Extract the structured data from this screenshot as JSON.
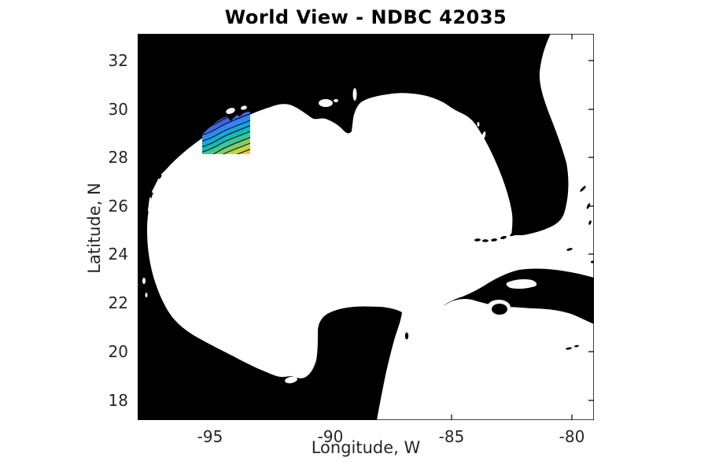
{
  "figure": {
    "title": "World View - NDBC 42035",
    "background_color": "#ffffff"
  },
  "axes": {
    "x_label": "Longitude, W",
    "y_label": "Latitude, N",
    "x_ticks": [
      "-95",
      "-90",
      "-85",
      "-80"
    ],
    "y_ticks": [
      "32",
      "30",
      "28",
      "26",
      "24",
      "22",
      "20",
      "18"
    ],
    "tick_label_color": "#262626",
    "frame_color": "#000000"
  },
  "map": {
    "region": "Gulf of Mexico",
    "land_color": "#000000",
    "water_color": "#ffffff",
    "features": [
      "Texas and Mexico coastline",
      "Louisiana coast with Mississippi River delta",
      "Lake Pontchartrain",
      "Florida panhandle",
      "Florida peninsula and Florida Keys",
      "Yucatan peninsula",
      "Bay of Campeche",
      "Cuba",
      "Isla de la Juventud",
      "Atlantic Ocean east of Florida"
    ]
  },
  "chart_data": {
    "type": "map-contour",
    "title": "World View - NDBC 42035",
    "xlabel": "Longitude, W",
    "ylabel": "Latitude, N",
    "xlim": [
      -98.0,
      -79.0
    ],
    "ylim": [
      17.1,
      33.1
    ],
    "x_ticks": [
      -95,
      -90,
      -85,
      -80
    ],
    "y_ticks": [
      32,
      30,
      28,
      26,
      24,
      22,
      20,
      18
    ],
    "grid": false,
    "legend": false,
    "region": "Gulf of Mexico",
    "station": "NDBC 42035",
    "contour_patch": {
      "description": "Filled contour overlay adjacent to the Texas coast near buoy 42035",
      "lon_range": [
        -95.3,
        -93.3
      ],
      "lat_range": [
        28.2,
        29.8
      ],
      "band_colors": [
        "#342f9e",
        "#3b44bc",
        "#3f63e8",
        "#2e86f2",
        "#18a5dc",
        "#0fbcb4",
        "#3fc692",
        "#85cd5f",
        "#c6d43f",
        "#fbc631"
      ],
      "line_color": "#101024",
      "orientation": "band values increase from northwest (dark blue) to southeast (yellow-orange)"
    }
  }
}
